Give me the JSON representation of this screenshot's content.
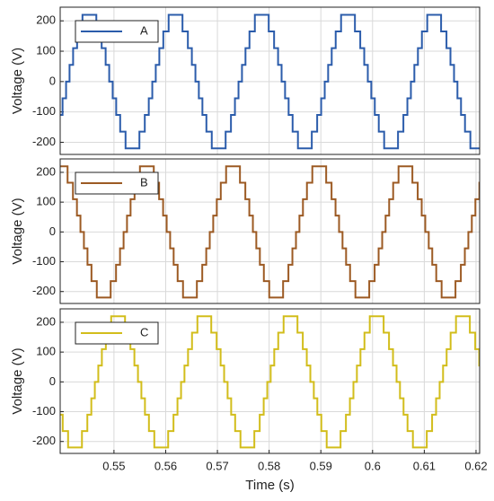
{
  "chart_data": [
    {
      "type": "line",
      "step": "post",
      "y_label": "Voltage (V)",
      "xlim": [
        0.5396,
        0.6207
      ],
      "ylim": [
        -240,
        245
      ],
      "yticks": [
        -200,
        -100,
        0,
        100,
        200
      ],
      "grid": true,
      "legend": "upper left",
      "x": [
        0.5396,
        0.54006,
        0.54074,
        0.54141,
        0.5421,
        0.54287,
        0.54391,
        0.54659,
        0.54762,
        0.54839,
        0.54908,
        0.54975,
        0.55043,
        0.5512,
        0.55224,
        0.55492,
        0.55596,
        0.55673,
        0.55741,
        0.55808,
        0.55877,
        0.55954,
        0.56057,
        0.56325,
        0.56429,
        0.56506,
        0.56575,
        0.56641,
        0.5671,
        0.56787,
        0.56891,
        0.57159,
        0.57262,
        0.57339,
        0.57408,
        0.57475,
        0.57543,
        0.5762,
        0.57724,
        0.57992,
        0.58096,
        0.58173,
        0.58241,
        0.58308,
        0.58377,
        0.58454,
        0.58557,
        0.58825,
        0.58929,
        0.59006,
        0.59075,
        0.59141,
        0.5921,
        0.59287,
        0.59391,
        0.59659,
        0.59762,
        0.59839,
        0.59908,
        0.59975,
        0.60043,
        0.6012,
        0.60224,
        0.60492,
        0.60596,
        0.60673,
        0.60741,
        0.60808,
        0.60877,
        0.60954,
        0.61057,
        0.61325,
        0.61429,
        0.61506,
        0.61575,
        0.61641,
        0.6171,
        0.61787,
        0.61891
      ],
      "series": [
        {
          "name": "A",
          "color": "#2b5cab",
          "values": [
            -110,
            -55,
            0,
            55,
            110,
            165,
            220,
            165,
            110,
            55,
            0,
            -55,
            -110,
            -165,
            -220,
            -165,
            -110,
            -55,
            0,
            55,
            110,
            165,
            220,
            165,
            110,
            55,
            0,
            -55,
            -110,
            -165,
            -220,
            -165,
            -110,
            -55,
            0,
            55,
            110,
            165,
            220,
            165,
            110,
            55,
            0,
            -55,
            -110,
            -165,
            -220,
            -165,
            -110,
            -55,
            0,
            55,
            110,
            165,
            220,
            165,
            110,
            55,
            0,
            -55,
            -110,
            -165,
            -220,
            -165,
            -110,
            -55,
            0,
            55,
            110,
            165,
            220,
            165,
            110,
            55,
            0,
            -55,
            -110,
            -165,
            -220
          ]
        }
      ]
    },
    {
      "type": "line",
      "step": "post",
      "y_label": "Voltage (V)",
      "xlim": [
        0.5396,
        0.6207
      ],
      "ylim": [
        -240,
        245
      ],
      "yticks": [
        -200,
        -100,
        0,
        100,
        200
      ],
      "grid": true,
      "legend": "upper left",
      "x": [
        0.5396,
        0.54103,
        0.54207,
        0.54284,
        0.54352,
        0.54419,
        0.54488,
        0.54565,
        0.54668,
        0.54936,
        0.5504,
        0.55117,
        0.55186,
        0.55252,
        0.55321,
        0.55398,
        0.55502,
        0.5577,
        0.55873,
        0.5595,
        0.56019,
        0.56086,
        0.56154,
        0.56231,
        0.56335,
        0.56603,
        0.56707,
        0.56784,
        0.56852,
        0.56919,
        0.56988,
        0.57065,
        0.57168,
        0.57436,
        0.5754,
        0.57617,
        0.57686,
        0.57752,
        0.57821,
        0.57898,
        0.58002,
        0.5827,
        0.58373,
        0.5845,
        0.58519,
        0.58586,
        0.58654,
        0.58731,
        0.58835,
        0.59103,
        0.59207,
        0.59284,
        0.59352,
        0.59419,
        0.59488,
        0.59565,
        0.59668,
        0.59936,
        0.6004,
        0.60117,
        0.60186,
        0.60252,
        0.60321,
        0.60398,
        0.60502,
        0.6077,
        0.60873,
        0.6095,
        0.61019,
        0.61086,
        0.61154,
        0.61231,
        0.61335,
        0.61603,
        0.61707,
        0.61784,
        0.61852,
        0.61919,
        0.61988,
        0.62065
      ],
      "series": [
        {
          "name": "B",
          "color": "#9c5a23",
          "values": [
            220,
            165,
            110,
            55,
            0,
            -55,
            -110,
            -165,
            -220,
            -165,
            -110,
            -55,
            0,
            55,
            110,
            165,
            220,
            165,
            110,
            55,
            0,
            -55,
            -110,
            -165,
            -220,
            -165,
            -110,
            -55,
            0,
            55,
            110,
            165,
            220,
            165,
            110,
            55,
            0,
            -55,
            -110,
            -165,
            -220,
            -165,
            -110,
            -55,
            0,
            55,
            110,
            165,
            220,
            165,
            110,
            55,
            0,
            -55,
            -110,
            -165,
            -220,
            -165,
            -110,
            -55,
            0,
            55,
            110,
            165,
            220,
            165,
            110,
            55,
            0,
            -55,
            -110,
            -165,
            -220,
            -165,
            -110,
            -55,
            0,
            55,
            110,
            165
          ]
        }
      ]
    },
    {
      "type": "line",
      "step": "post",
      "x_label": "Time (s)",
      "y_label": "Voltage (V)",
      "xlim": [
        0.5396,
        0.6207
      ],
      "ylim": [
        -240,
        245
      ],
      "xticks": [
        0.55,
        0.56,
        0.57,
        0.58,
        0.59,
        0.6,
        0.61,
        0.62
      ],
      "yticks": [
        -200,
        -100,
        0,
        100,
        200
      ],
      "grid": true,
      "legend": "upper left",
      "x": [
        0.5396,
        0.54009,
        0.54113,
        0.54381,
        0.54485,
        0.54562,
        0.5463,
        0.54697,
        0.54766,
        0.54843,
        0.54946,
        0.55214,
        0.55318,
        0.55395,
        0.55464,
        0.5553,
        0.55599,
        0.55676,
        0.5578,
        0.56048,
        0.56151,
        0.56228,
        0.56297,
        0.56363,
        0.56432,
        0.56509,
        0.56613,
        0.56881,
        0.56985,
        0.57062,
        0.5713,
        0.57197,
        0.57266,
        0.57343,
        0.57446,
        0.57714,
        0.57818,
        0.57895,
        0.57964,
        0.5803,
        0.58099,
        0.58176,
        0.5828,
        0.58548,
        0.58651,
        0.58728,
        0.58797,
        0.58864,
        0.58932,
        0.59009,
        0.59113,
        0.59381,
        0.59485,
        0.59562,
        0.5963,
        0.59697,
        0.59766,
        0.59843,
        0.59946,
        0.60214,
        0.60318,
        0.60395,
        0.60464,
        0.6053,
        0.60599,
        0.60676,
        0.6078,
        0.61048,
        0.61151,
        0.61228,
        0.61297,
        0.61363,
        0.61432,
        0.61509,
        0.61613,
        0.61881,
        0.61985,
        0.62062
      ],
      "series": [
        {
          "name": "C",
          "color": "#d2bd1b",
          "values": [
            -110,
            -165,
            -220,
            -165,
            -110,
            -55,
            0,
            55,
            110,
            165,
            220,
            165,
            110,
            55,
            0,
            -55,
            -110,
            -165,
            -220,
            -165,
            -110,
            -55,
            0,
            55,
            110,
            165,
            220,
            165,
            110,
            55,
            0,
            -55,
            -110,
            -165,
            -220,
            -165,
            -110,
            -55,
            0,
            55,
            110,
            165,
            220,
            165,
            110,
            55,
            0,
            -55,
            -110,
            -165,
            -220,
            -165,
            -110,
            -55,
            0,
            55,
            110,
            165,
            220,
            165,
            110,
            55,
            0,
            -55,
            -110,
            -165,
            -220,
            -165,
            -110,
            -55,
            0,
            55,
            110,
            165,
            220,
            165,
            110,
            55
          ]
        }
      ]
    }
  ]
}
